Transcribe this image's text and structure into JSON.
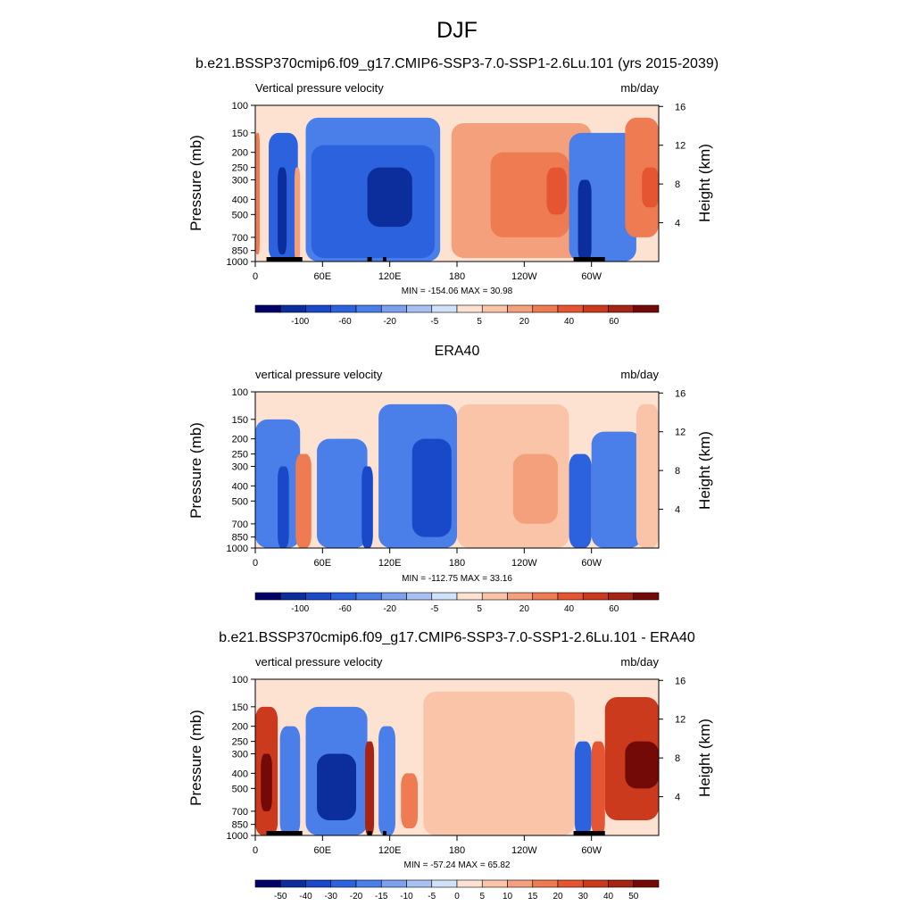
{
  "main_title": "DJF",
  "panels": [
    {
      "title": "b.e21.BSSP370cmip6.f09_g17.CMIP6-SSP3-7.0-SSP1-2.6Lu.101 (yrs 2015-2039)",
      "left_title": "Vertical pressure velocity",
      "right_title": "mb/day",
      "minmax": "MIN = -154.06  MAX =  30.98",
      "colorbar_labels": [
        "-100",
        "-60",
        "-20",
        "-5",
        "5",
        "20",
        "40",
        "60"
      ]
    },
    {
      "title": "ERA40",
      "left_title": "vertical pressure velocity",
      "right_title": "mb/day",
      "minmax": "MIN = -112.75  MAX =  33.16",
      "colorbar_labels": [
        "-100",
        "-60",
        "-20",
        "-5",
        "5",
        "20",
        "40",
        "60"
      ]
    },
    {
      "title": "b.e21.BSSP370cmip6.f09_g17.CMIP6-SSP3-7.0-SSP1-2.6Lu.101 - ERA40",
      "left_title": "vertical pressure velocity",
      "right_title": "mb/day",
      "minmax": "MIN = -57.24  MAX =  65.82",
      "colorbar_labels": [
        "-50",
        "-40",
        "-30",
        "-20",
        "-15",
        "-10",
        "-5",
        "0",
        "5",
        "10",
        "15",
        "20",
        "30",
        "40",
        "50"
      ]
    }
  ],
  "axes": {
    "ylabel_left": "Pressure (mb)",
    "ylabel_right": "Height (km)"
  },
  "colors": {
    "palette": [
      "#000066",
      "#0c2e9c",
      "#1948c8",
      "#2d62de",
      "#4a7ee8",
      "#7aa0ee",
      "#a7c1f3",
      "#d0e1fa",
      "#fde2d2",
      "#f9c4a8",
      "#f4a07d",
      "#ee7b52",
      "#e65532",
      "#cc3a1e",
      "#a52414",
      "#740a08"
    ]
  },
  "chart_data": [
    {
      "type": "heatmap",
      "title": "b.e21.BSSP370cmip6.f09_g17.CMIP6-SSP3-7.0-SSP1-2.6Lu.101 (yrs 2015-2039)",
      "x_ticks": [
        "0",
        "60E",
        "120E",
        "180",
        "120W",
        "60W"
      ],
      "x_range": [
        0,
        360
      ],
      "y_ticks_pressure": [
        100,
        150,
        200,
        250,
        300,
        400,
        500,
        700,
        850,
        1000
      ],
      "y_ticks_height_km": [
        4,
        8,
        12,
        16
      ],
      "y_scale": "log",
      "y_range": [
        1000,
        100
      ],
      "levels": [
        -100,
        -80,
        -60,
        -40,
        -20,
        -10,
        -5,
        0,
        5,
        10,
        20,
        30,
        40,
        50,
        60
      ],
      "min": -154.06,
      "max": 30.98,
      "land_mask_lon": [
        [
          10,
          42
        ],
        [
          100,
          104
        ],
        [
          114,
          117
        ],
        [
          284,
          312
        ]
      ],
      "regions": [
        {
          "lon": [
            0,
            4
          ],
          "p": [
            150,
            900
          ],
          "value": 25
        },
        {
          "lon": [
            12,
            38
          ],
          "p": [
            150,
            1000
          ],
          "value": -45
        },
        {
          "lon": [
            20,
            28
          ],
          "p": [
            250,
            900
          ],
          "value": -90
        },
        {
          "lon": [
            35,
            40
          ],
          "p": [
            250,
            1000
          ],
          "value": 15
        },
        {
          "lon": [
            45,
            165
          ],
          "p": [
            120,
            1000
          ],
          "value": -30
        },
        {
          "lon": [
            50,
            160
          ],
          "p": [
            180,
            950
          ],
          "value": -60
        },
        {
          "lon": [
            100,
            140
          ],
          "p": [
            250,
            600
          ],
          "value": -85
        },
        {
          "lon": [
            175,
            300
          ],
          "p": [
            130,
            950
          ],
          "value": 10
        },
        {
          "lon": [
            210,
            280
          ],
          "p": [
            200,
            700
          ],
          "value": 22
        },
        {
          "lon": [
            260,
            278
          ],
          "p": [
            250,
            500
          ],
          "value": 32
        },
        {
          "lon": [
            280,
            340
          ],
          "p": [
            150,
            1000
          ],
          "value": -40
        },
        {
          "lon": [
            288,
            300
          ],
          "p": [
            300,
            1000
          ],
          "value": -85
        },
        {
          "lon": [
            330,
            360
          ],
          "p": [
            120,
            700
          ],
          "value": 20
        },
        {
          "lon": [
            345,
            360
          ],
          "p": [
            250,
            450
          ],
          "value": 32
        }
      ]
    },
    {
      "type": "heatmap",
      "title": "ERA40",
      "x_ticks": [
        "0",
        "60E",
        "120E",
        "180",
        "120W",
        "60W"
      ],
      "x_range": [
        0,
        360
      ],
      "y_ticks_pressure": [
        100,
        150,
        200,
        250,
        300,
        400,
        500,
        700,
        850,
        1000
      ],
      "y_ticks_height_km": [
        4,
        8,
        12,
        16
      ],
      "y_scale": "log",
      "y_range": [
        1000,
        100
      ],
      "levels": [
        -100,
        -80,
        -60,
        -40,
        -20,
        -10,
        -5,
        0,
        5,
        10,
        20,
        30,
        40,
        50,
        60
      ],
      "min": -112.75,
      "max": 33.16,
      "regions": [
        {
          "lon": [
            0,
            40
          ],
          "p": [
            150,
            1000
          ],
          "value": -25
        },
        {
          "lon": [
            20,
            30
          ],
          "p": [
            300,
            1000
          ],
          "value": -70
        },
        {
          "lon": [
            36,
            50
          ],
          "p": [
            250,
            1000
          ],
          "value": 22
        },
        {
          "lon": [
            55,
            100
          ],
          "p": [
            200,
            1000
          ],
          "value": -35
        },
        {
          "lon": [
            95,
            105
          ],
          "p": [
            300,
            1000
          ],
          "value": -80
        },
        {
          "lon": [
            110,
            180
          ],
          "p": [
            120,
            1000
          ],
          "value": -40
        },
        {
          "lon": [
            140,
            175
          ],
          "p": [
            200,
            850
          ],
          "value": -65
        },
        {
          "lon": [
            180,
            280
          ],
          "p": [
            120,
            1000
          ],
          "value": 8
        },
        {
          "lon": [
            230,
            270
          ],
          "p": [
            250,
            700
          ],
          "value": 15
        },
        {
          "lon": [
            280,
            300
          ],
          "p": [
            250,
            1000
          ],
          "value": -60
        },
        {
          "lon": [
            300,
            345
          ],
          "p": [
            180,
            1000
          ],
          "value": -40
        },
        {
          "lon": [
            340,
            360
          ],
          "p": [
            120,
            1000
          ],
          "value": 8
        }
      ]
    },
    {
      "type": "heatmap",
      "title": "b.e21.BSSP370cmip6.f09_g17.CMIP6-SSP3-7.0-SSP1-2.6Lu.101 - ERA40",
      "x_ticks": [
        "0",
        "60E",
        "120E",
        "180",
        "120W",
        "60W"
      ],
      "x_range": [
        0,
        360
      ],
      "y_ticks_pressure": [
        100,
        150,
        200,
        250,
        300,
        400,
        500,
        700,
        850,
        1000
      ],
      "y_ticks_height_km": [
        4,
        8,
        12,
        16
      ],
      "y_scale": "log",
      "y_range": [
        1000,
        100
      ],
      "levels": [
        -50,
        -45,
        -40,
        -35,
        -30,
        -25,
        -20,
        -15,
        -10,
        -5,
        0,
        5,
        10,
        15,
        20,
        25,
        30,
        35,
        40,
        45,
        50
      ],
      "min": -57.24,
      "max": 65.82,
      "land_mask_lon": [
        [
          10,
          42
        ],
        [
          100,
          104
        ],
        [
          114,
          117
        ],
        [
          284,
          312
        ]
      ],
      "regions": [
        {
          "lon": [
            0,
            20
          ],
          "p": [
            150,
            1000
          ],
          "value": 35
        },
        {
          "lon": [
            5,
            15
          ],
          "p": [
            300,
            700
          ],
          "value": 55
        },
        {
          "lon": [
            22,
            40
          ],
          "p": [
            200,
            1000
          ],
          "value": -25
        },
        {
          "lon": [
            45,
            100
          ],
          "p": [
            150,
            1000
          ],
          "value": -30
        },
        {
          "lon": [
            55,
            90
          ],
          "p": [
            300,
            800
          ],
          "value": -45
        },
        {
          "lon": [
            98,
            106
          ],
          "p": [
            250,
            1000
          ],
          "value": 45
        },
        {
          "lon": [
            110,
            125
          ],
          "p": [
            200,
            1000
          ],
          "value": -30
        },
        {
          "lon": [
            130,
            145
          ],
          "p": [
            400,
            900
          ],
          "value": 25
        },
        {
          "lon": [
            150,
            285
          ],
          "p": [
            120,
            1000
          ],
          "value": 5
        },
        {
          "lon": [
            285,
            300
          ],
          "p": [
            250,
            1000
          ],
          "value": -35
        },
        {
          "lon": [
            300,
            312
          ],
          "p": [
            250,
            1000
          ],
          "value": 30
        },
        {
          "lon": [
            312,
            360
          ],
          "p": [
            130,
            800
          ],
          "value": 35
        },
        {
          "lon": [
            330,
            360
          ],
          "p": [
            250,
            500
          ],
          "value": 50
        }
      ]
    }
  ]
}
